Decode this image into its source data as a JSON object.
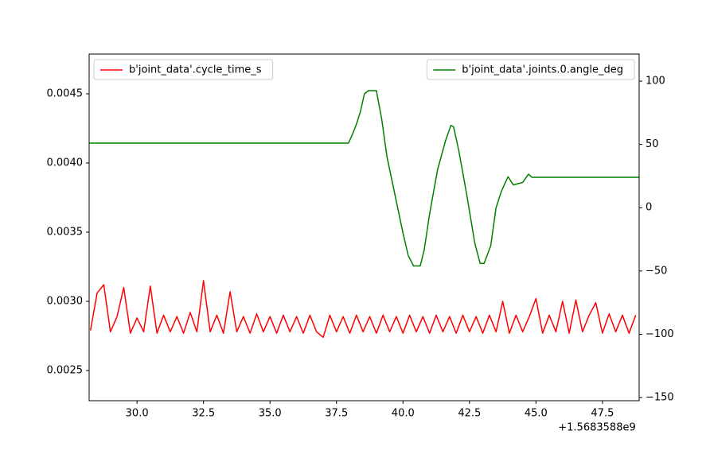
{
  "chart_data": {
    "type": "line",
    "xlim": [
      28.2,
      48.88
    ],
    "xticks": [
      {
        "value": 30,
        "label": "30.0"
      },
      32.5,
      {
        "value": 35,
        "label": "35.0"
      },
      37.5,
      {
        "value": 40,
        "label": "40.0"
      },
      42.5,
      {
        "value": 45,
        "label": "45.0"
      },
      47.5
    ],
    "x_offset_label": "+1.5683588e9",
    "ylim": [
      0.002282,
      0.004787
    ],
    "yticks": [
      0.0025,
      {
        "value": 0.003,
        "label": "0.0030"
      },
      0.0035,
      {
        "value": 0.004,
        "label": "0.0040"
      },
      0.0045
    ],
    "y2lim": [
      -152.5,
      121.4
    ],
    "y2ticks": [
      {
        "value": -150,
        "label": "−150"
      },
      {
        "value": -100,
        "label": "−100"
      },
      {
        "value": -50,
        "label": "−50"
      },
      0,
      50,
      100
    ],
    "series": [
      {
        "name": "b'joint_data'.cycle_time_s",
        "color": "#ff0000",
        "axis": "y",
        "legend": "upper left",
        "x": [
          28.25,
          28.5,
          28.75,
          29.0,
          29.25,
          29.5,
          29.75,
          30.0,
          30.25,
          30.5,
          30.75,
          31.0,
          31.25,
          31.5,
          31.75,
          32.0,
          32.25,
          32.5,
          32.75,
          33.0,
          33.25,
          33.5,
          33.75,
          34.0,
          34.25,
          34.5,
          34.75,
          35.0,
          35.25,
          35.5,
          35.75,
          36.0,
          36.25,
          36.5,
          36.75,
          37.0,
          37.25,
          37.5,
          37.75,
          38.0,
          38.25,
          38.5,
          38.75,
          39.0,
          39.25,
          39.5,
          39.75,
          40.0,
          40.25,
          40.5,
          40.75,
          41.0,
          41.25,
          41.5,
          41.75,
          42.0,
          42.25,
          42.5,
          42.75,
          43.0,
          43.25,
          43.5,
          43.75,
          44.0,
          44.25,
          44.5,
          44.75,
          45.0,
          45.25,
          45.5,
          45.75,
          46.0,
          46.25,
          46.5,
          46.75,
          47.0,
          47.25,
          47.5,
          47.75,
          48.0,
          48.25,
          48.5,
          48.75
        ],
        "values": [
          0.00279,
          0.00306,
          0.00312,
          0.00278,
          0.00289,
          0.0031,
          0.00277,
          0.00288,
          0.00278,
          0.00311,
          0.00277,
          0.0029,
          0.00278,
          0.00289,
          0.00277,
          0.00292,
          0.00278,
          0.00315,
          0.00278,
          0.0029,
          0.00277,
          0.00307,
          0.00278,
          0.00289,
          0.00277,
          0.00291,
          0.00278,
          0.00289,
          0.00277,
          0.0029,
          0.00278,
          0.00289,
          0.00277,
          0.0029,
          0.00278,
          0.00274,
          0.0029,
          0.00278,
          0.00289,
          0.00277,
          0.0029,
          0.00278,
          0.00289,
          0.00277,
          0.0029,
          0.00278,
          0.00289,
          0.00277,
          0.0029,
          0.00278,
          0.00289,
          0.00277,
          0.0029,
          0.00278,
          0.00289,
          0.00277,
          0.0029,
          0.00278,
          0.00289,
          0.00277,
          0.0029,
          0.00278,
          0.003,
          0.00277,
          0.0029,
          0.00278,
          0.00289,
          0.00302,
          0.00277,
          0.0029,
          0.00278,
          0.003,
          0.00277,
          0.00301,
          0.00278,
          0.0029,
          0.00299,
          0.00277,
          0.00291,
          0.00278,
          0.0029,
          0.00277,
          0.0029
        ]
      },
      {
        "name": "b'joint_data'.joints.0.angle_deg",
        "color": "#008000",
        "axis": "y2",
        "legend": "upper right",
        "x": [
          28.2,
          37.95,
          38.1,
          38.25,
          38.4,
          38.55,
          38.7,
          39.0,
          39.2,
          39.4,
          39.7,
          40.0,
          40.2,
          40.4,
          40.65,
          40.8,
          41.0,
          41.3,
          41.6,
          41.8,
          41.9,
          42.1,
          42.4,
          42.7,
          42.9,
          43.05,
          43.3,
          43.5,
          43.7,
          43.95,
          44.15,
          44.5,
          44.72,
          44.85,
          48.88
        ],
        "values": [
          51,
          51,
          58,
          66,
          76,
          90,
          92.5,
          92.5,
          70,
          40,
          10,
          -20,
          -38,
          -46,
          -46,
          -33,
          -5,
          30,
          53,
          65,
          64,
          45,
          10,
          -28,
          -44,
          -44,
          -30,
          0,
          13,
          24.5,
          18,
          20,
          26.5,
          24,
          24
        ]
      }
    ]
  }
}
